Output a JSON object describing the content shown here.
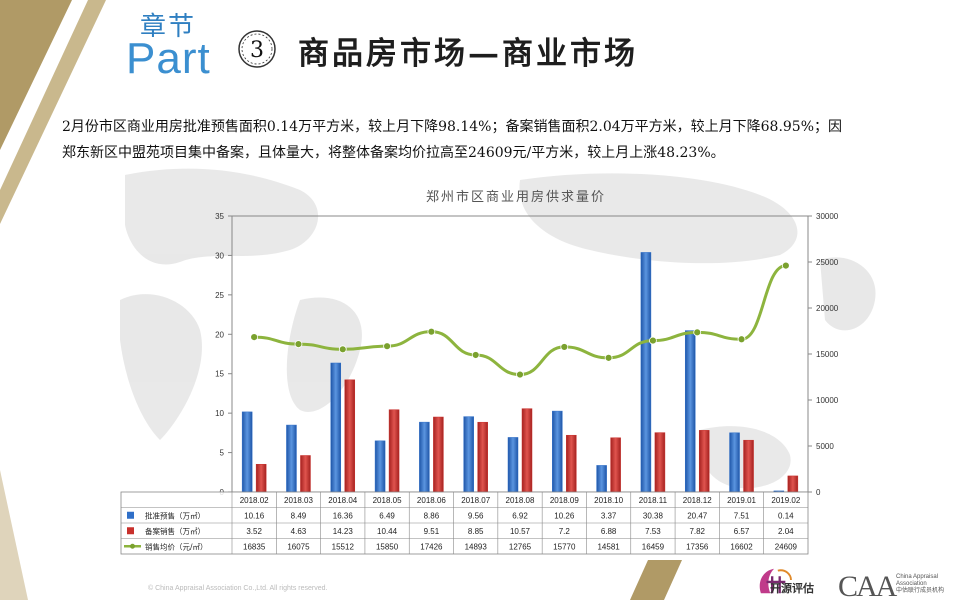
{
  "header": {
    "chapter_label": "章节",
    "part_label": "Part",
    "section_number": "3",
    "section_title": "商品房市场—商业市场"
  },
  "intro": {
    "line1": "2月份市区商业用房批准预售面积0.14万平方米，较上月下降98.14%；备案销售面积2.04万平方米，较上月下降68.95%；因",
    "line2": "郑东新区中盟苑项目集中备案，且体量大，将整体备案均价拉高至24609元/平方米，较上月上涨48.23%。"
  },
  "chart_data": {
    "type": "bar",
    "title": "郑州市区商业用房供求量价",
    "categories": [
      "2018.02",
      "2018.03",
      "2018.04",
      "2018.05",
      "2018.06",
      "2018.07",
      "2018.08",
      "2018.09",
      "2018.10",
      "2018.11",
      "2018.12",
      "2019.01",
      "2019.02"
    ],
    "y_left": {
      "ylim": [
        0,
        35
      ],
      "ticks": [
        "0",
        "5",
        "10",
        "15",
        "20",
        "25",
        "30",
        "35"
      ]
    },
    "y_right": {
      "ylim": [
        0,
        30000
      ],
      "ticks": [
        "0",
        "5000",
        "10000",
        "15000",
        "20000",
        "25000",
        "30000"
      ]
    },
    "series": [
      {
        "name": "批准预售（万㎡）",
        "kind": "bar",
        "axis": "left",
        "color": "#2f6fc8",
        "values": [
          10.16,
          8.49,
          16.36,
          6.49,
          8.86,
          9.56,
          6.92,
          10.26,
          3.37,
          30.38,
          20.47,
          7.51,
          0.14
        ],
        "labels": [
          "10.16",
          "8.49",
          "16.36",
          "6.49",
          "8.86",
          "9.56",
          "6.92",
          "10.26",
          "3.37",
          "30.38",
          "20.47",
          "7.51",
          "0.14"
        ]
      },
      {
        "name": "备案销售（万㎡）",
        "kind": "bar",
        "axis": "left",
        "color": "#c8302c",
        "values": [
          3.52,
          4.63,
          14.23,
          10.44,
          9.51,
          8.85,
          10.57,
          7.2,
          6.88,
          7.53,
          7.82,
          6.57,
          2.04
        ],
        "labels": [
          "3.52",
          "4.63",
          "14.23",
          "10.44",
          "9.51",
          "8.85",
          "10.57",
          "7.2",
          "6.88",
          "7.53",
          "7.82",
          "6.57",
          "2.04"
        ]
      },
      {
        "name": "销售均价（元/㎡）",
        "kind": "line",
        "axis": "right",
        "color": "#8db43e",
        "values": [
          16835,
          16075,
          15512,
          15850,
          17426,
          14893,
          12765,
          15770,
          14581,
          16459,
          17356,
          16602,
          24609
        ],
        "labels": [
          "16835",
          "16075",
          "15512",
          "15850",
          "17426",
          "14893",
          "12765",
          "15770",
          "14581",
          "16459",
          "17356",
          "16602",
          "24609"
        ]
      }
    ],
    "grid": false,
    "legend_placement": "data-table-below"
  },
  "footer": {
    "copyright": "© China Appraisal Association Co.,Ltd. All rights reserved.",
    "kaiyuan_name": "开源评估",
    "caa_logo_text": "CAA",
    "caa_sub_line1": "China Appraisal",
    "caa_sub_line2": "Association",
    "caa_sub_line3": "中估联行成员机构"
  },
  "colors": {
    "gold": "#b09a66",
    "accent_blue": "#2f7fc1",
    "bar_blue": "#2f6fc8",
    "bar_red": "#c8302c",
    "line_green": "#8db43e"
  }
}
